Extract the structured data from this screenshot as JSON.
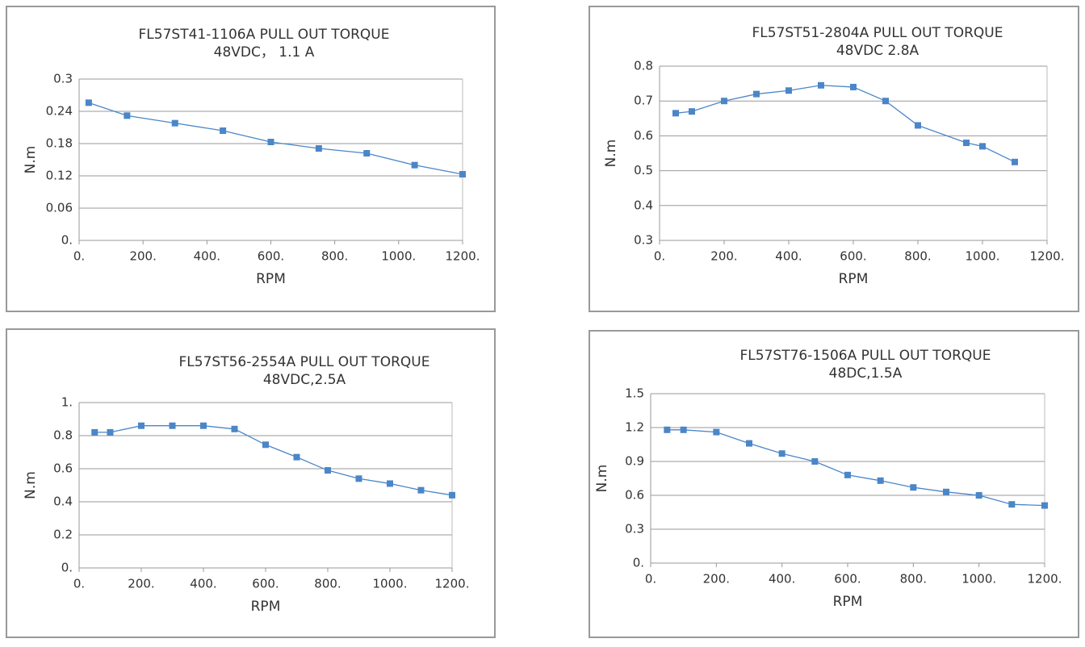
{
  "chart_data": [
    {
      "type": "line",
      "title": "FL57ST41-1106A    PULL  OUT  TORQUE",
      "subtitle": "48VDC， 1.1 A",
      "x_label": "RPM",
      "y_label": "N.m",
      "grid": true,
      "color": "#4a86c8",
      "x": [
        30,
        150,
        300,
        450,
        600,
        750,
        900,
        1050,
        1200
      ],
      "values": [
        0.256,
        0.232,
        0.218,
        0.204,
        0.183,
        0.171,
        0.162,
        0.14,
        0.123
      ],
      "xlim": [
        0,
        1200
      ],
      "ylim": [
        0,
        0.3
      ],
      "xticks": [
        {
          "value": 0,
          "label": "0."
        },
        {
          "value": 200,
          "label": "200."
        },
        {
          "value": 400,
          "label": "400."
        },
        {
          "value": 600,
          "label": "600."
        },
        {
          "value": 800,
          "label": "800."
        },
        {
          "value": 1000,
          "label": "1000."
        },
        {
          "value": 1200,
          "label": "1200."
        }
      ],
      "yticks": [
        {
          "value": 0,
          "label": "0."
        },
        0.06,
        0.12,
        0.18,
        0.24,
        0.3
      ]
    },
    {
      "type": "line",
      "title": "FL57ST51-2804A  PULL   OUT   TORQUE",
      "subtitle": "48VDC 2.8A",
      "x_label": "RPM",
      "y_label": "N.m",
      "grid": true,
      "color": "#4a86c8",
      "x": [
        50,
        100,
        200,
        300,
        400,
        500,
        600,
        700,
        800,
        950,
        1000,
        1100
      ],
      "values": [
        0.665,
        0.67,
        0.7,
        0.72,
        0.73,
        0.745,
        0.74,
        0.7,
        0.63,
        0.58,
        0.57,
        0.525
      ],
      "xlim": [
        0,
        1200
      ],
      "ylim": [
        0.3,
        0.8
      ],
      "xticks": [
        {
          "value": 0,
          "label": "0."
        },
        {
          "value": 200,
          "label": "200."
        },
        {
          "value": 400,
          "label": "400."
        },
        {
          "value": 600,
          "label": "600."
        },
        {
          "value": 800,
          "label": "800."
        },
        {
          "value": 1000,
          "label": "1000."
        },
        {
          "value": 1200,
          "label": "1200."
        }
      ],
      "yticks": [
        0.3,
        0.4,
        0.5,
        0.6,
        0.7,
        0.8
      ]
    },
    {
      "type": "line",
      "title": "FL57ST56-2554A   PULL   OUT   TORQUE",
      "subtitle": "48VDC,2.5A",
      "x_label": "RPM",
      "y_label": "N.m",
      "grid": true,
      "color": "#4a86c8",
      "x": [
        50,
        100,
        200,
        300,
        400,
        500,
        600,
        700,
        800,
        900,
        1000,
        1100,
        1200
      ],
      "values": [
        0.82,
        0.82,
        0.86,
        0.86,
        0.86,
        0.84,
        0.745,
        0.67,
        0.59,
        0.54,
        0.51,
        0.47,
        0.44
      ],
      "xlim": [
        0,
        1200
      ],
      "ylim": [
        0,
        1
      ],
      "xticks": [
        {
          "value": 0,
          "label": "0."
        },
        {
          "value": 200,
          "label": "200."
        },
        {
          "value": 400,
          "label": "400."
        },
        {
          "value": 600,
          "label": "600."
        },
        {
          "value": 800,
          "label": "800."
        },
        {
          "value": 1000,
          "label": "1000."
        },
        {
          "value": 1200,
          "label": "1200."
        }
      ],
      "yticks": [
        {
          "value": 0,
          "label": "0."
        },
        0.2,
        0.4,
        0.6,
        0.8,
        {
          "value": 1,
          "label": "1."
        }
      ]
    },
    {
      "type": "line",
      "title": "FL57ST76-1506A  PULL  OUT  TORQUE",
      "subtitle": "48DC,1.5A",
      "x_label": "RPM",
      "y_label": "N.m",
      "grid": true,
      "color": "#4a86c8",
      "x": [
        50,
        100,
        200,
        300,
        400,
        500,
        600,
        700,
        800,
        900,
        1000,
        1100,
        1200
      ],
      "values": [
        1.18,
        1.18,
        1.16,
        1.06,
        0.97,
        0.9,
        0.78,
        0.73,
        0.67,
        0.63,
        0.6,
        0.52,
        0.51
      ],
      "xlim": [
        0,
        1200
      ],
      "ylim": [
        0,
        1.5
      ],
      "xticks": [
        {
          "value": 0,
          "label": "0."
        },
        {
          "value": 200,
          "label": "200."
        },
        {
          "value": 400,
          "label": "400."
        },
        {
          "value": 600,
          "label": "600."
        },
        {
          "value": 800,
          "label": "800."
        },
        {
          "value": 1000,
          "label": "1000."
        },
        {
          "value": 1200,
          "label": "1200."
        }
      ],
      "yticks": [
        {
          "value": 0,
          "label": "0."
        },
        0.3,
        0.6,
        0.9,
        1.2,
        1.5
      ]
    }
  ]
}
